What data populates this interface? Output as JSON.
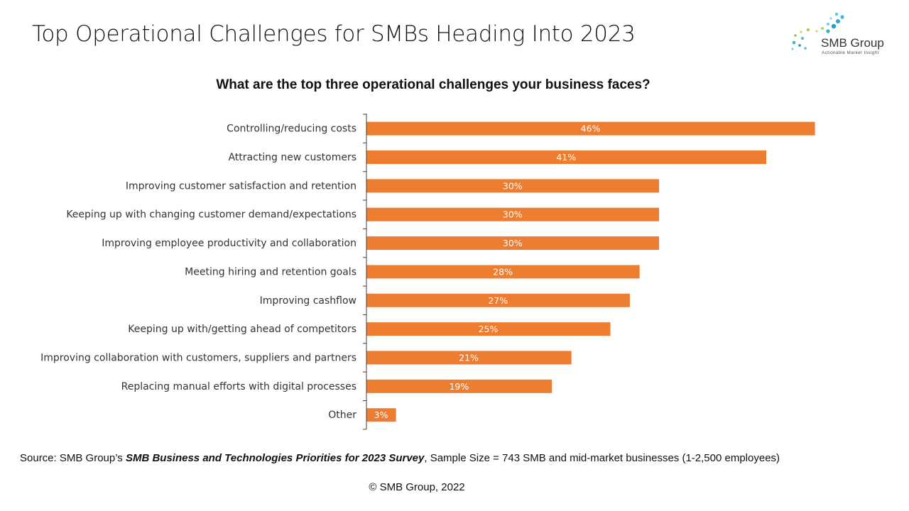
{
  "header": {
    "title": "Top Operational Challenges for SMBs Heading Into 2023",
    "logo_text": "SMB Group",
    "logo_tagline": "Actionable Market Insight"
  },
  "colors": {
    "bar": "#ED7D31",
    "axis": "#404040",
    "label": "#333333",
    "bar_label": "#ffffff"
  },
  "chart_data": {
    "type": "bar",
    "orientation": "horizontal",
    "title": "What are the top three operational challenges your business faces?",
    "categories": [
      "Controlling/reducing costs",
      "Attracting new customers",
      "Improving customer satisfaction and retention",
      "Keeping up with changing customer demand/expectations",
      "Improving employee productivity and collaboration",
      "Meeting hiring and retention goals",
      "Improving cashflow",
      "Keeping up with/getting ahead of competitors",
      "Improving collaboration with customers, suppliers and partners",
      "Replacing manual efforts with digital processes",
      "Other"
    ],
    "values": [
      46,
      41,
      30,
      30,
      30,
      28,
      27,
      25,
      21,
      19,
      3
    ],
    "value_labels": [
      "46%",
      "41%",
      "30%",
      "30%",
      "30%",
      "28%",
      "27%",
      "25%",
      "21%",
      "19%",
      "3%"
    ],
    "unit": "%",
    "xlim": [
      0,
      50
    ],
    "grid": false,
    "legend": "none"
  },
  "footer": {
    "source_prefix": "Source: SMB Group’s ",
    "source_survey": "SMB Business and Technologies Priorities for 2023  Survey",
    "source_suffix": ", Sample Size = 743 SMB and mid-market businesses (1-2,500 employees)",
    "copyright": "© SMB Group,  2022"
  }
}
